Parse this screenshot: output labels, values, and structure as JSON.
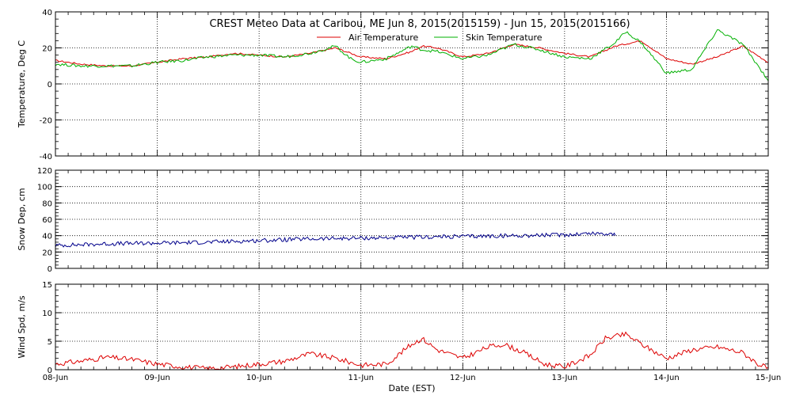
{
  "chart_data": [
    {
      "type": "line",
      "title": "CREST Meteo Data at Caribou, ME   Jun  8, 2015(2015159) - Jun 15, 2015(2015166)",
      "xlabel": "",
      "ylabel": "Temperature, Deg C",
      "xlim": [
        0,
        7
      ],
      "ylim": [
        -40,
        40
      ],
      "yticks": [
        "-40",
        "-20",
        "0",
        "20",
        "40"
      ],
      "grid": true,
      "legend_position": "top-center",
      "series": [
        {
          "name": "Air Temperature",
          "color": "#dd0000",
          "x": [
            0,
            0.25,
            0.5,
            0.75,
            1,
            1.25,
            1.5,
            1.75,
            2,
            2.25,
            2.5,
            2.75,
            3,
            3.25,
            3.5,
            3.6,
            3.75,
            4,
            4.25,
            4.5,
            4.75,
            5,
            5.25,
            5.5,
            5.75,
            6,
            6.25,
            6.5,
            6.75,
            7
          ],
          "y": [
            13,
            11,
            10,
            10,
            12,
            14,
            15,
            17,
            16,
            15,
            17,
            20,
            15,
            14,
            18,
            21,
            20,
            15,
            17,
            22,
            20,
            17,
            15,
            21,
            24,
            14,
            11,
            15,
            21,
            12
          ]
        },
        {
          "name": "Skin Temperature",
          "color": "#00b000",
          "x": [
            0,
            0.25,
            0.5,
            0.75,
            1,
            1.25,
            1.5,
            1.75,
            2,
            2.25,
            2.5,
            2.75,
            2.9,
            3,
            3.25,
            3.5,
            3.6,
            3.75,
            4,
            4.25,
            4.5,
            4.75,
            5,
            5.25,
            5.5,
            5.6,
            5.75,
            6,
            6.25,
            6.5,
            6.75,
            7
          ],
          "y": [
            11,
            10,
            10,
            10,
            12,
            13,
            15,
            16,
            16,
            15,
            17,
            21,
            14,
            12,
            14,
            21,
            19,
            18,
            14,
            16,
            22,
            19,
            15,
            14,
            23,
            29,
            23,
            6,
            8,
            30,
            22,
            2
          ]
        }
      ]
    },
    {
      "type": "line",
      "xlabel": "",
      "ylabel": "Snow Dep, cm",
      "xlim": [
        0,
        7
      ],
      "ylim": [
        0,
        120
      ],
      "yticks": [
        "0",
        "20",
        "40",
        "60",
        "80",
        "100",
        "120"
      ],
      "grid": true,
      "series": [
        {
          "color": "#00008b",
          "x": [
            0,
            0.5,
            1,
            1.5,
            2,
            2.5,
            3,
            3.5,
            4,
            4.5,
            5,
            5.25,
            5.5
          ],
          "y": [
            28,
            30,
            31,
            32,
            34,
            36,
            37,
            38,
            39,
            40,
            41,
            43,
            42
          ]
        }
      ]
    },
    {
      "type": "line",
      "xlabel": "Date (EST)",
      "ylabel": "Wind Spd, m/s",
      "xlim": [
        0,
        7
      ],
      "ylim": [
        0,
        15
      ],
      "yticks": [
        "0",
        "5",
        "10",
        "15"
      ],
      "xticks": [
        "08-Jun",
        "09-Jun",
        "10-Jun",
        "11-Jun",
        "12-Jun",
        "13-Jun",
        "14-Jun",
        "15-Jun"
      ],
      "grid": true,
      "series": [
        {
          "color": "#dd0000",
          "x": [
            0,
            0.25,
            0.5,
            0.75,
            1,
            1.25,
            1.5,
            1.75,
            2,
            2.25,
            2.5,
            2.75,
            3,
            3.25,
            3.5,
            3.6,
            3.75,
            4,
            4.25,
            4.4,
            4.6,
            4.8,
            5,
            5.25,
            5.4,
            5.6,
            5.8,
            6,
            6.25,
            6.5,
            6.75,
            6.9,
            7
          ],
          "y": [
            1,
            1.5,
            2.2,
            1.8,
            1,
            0.5,
            0.2,
            0.5,
            1,
            1.5,
            2.8,
            2,
            0.8,
            1,
            4.5,
            5.5,
            3.5,
            2,
            4,
            4.5,
            3,
            1,
            0.5,
            2.5,
            5.5,
            6.2,
            4,
            2,
            3.5,
            4,
            3,
            1,
            0.2
          ]
        }
      ]
    }
  ]
}
